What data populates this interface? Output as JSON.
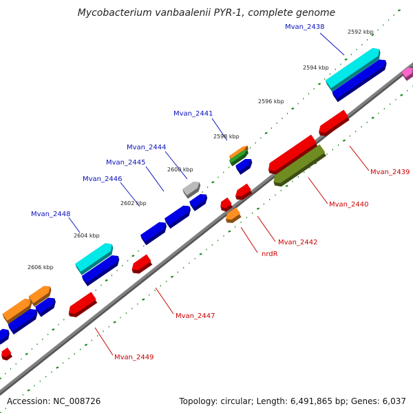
{
  "title": "Mycobacterium vanbaalenii PYR-1, complete genome",
  "footer": {
    "accession": "Accession: NC_008726",
    "summary": "Topology: circular; Length: 6,491,865 bp; Genes: 6,037"
  },
  "colors": {
    "blue": "#0000e6",
    "cyan": "#00e8e8",
    "red": "#ee0000",
    "orange": "#ff9020",
    "olive": "#6f8c22",
    "green": "#2ca02c",
    "gray": "#bbbbbb",
    "pink": "#ff66cc",
    "backbone": "#808080",
    "tick": "#1a8a1a",
    "label_blue": "#0a10b8",
    "label_red": "#c80000"
  },
  "kbp_ticks": [
    "2592 kbp",
    "2594 kbp",
    "2596 kbp",
    "2598 kbp",
    "2600 kbp",
    "2602 kbp",
    "2604 kbp",
    "2606 kbp"
  ],
  "genes_forward": [
    {
      "label": "Mvan_2438",
      "color": "cyan"
    },
    {
      "label": "Mvan_2441",
      "color": "orange"
    },
    {
      "label": "Mvan_2444",
      "color": "gray"
    },
    {
      "label": "Mvan_2445",
      "color": "blue"
    },
    {
      "label": "Mvan_2446",
      "color": "blue"
    },
    {
      "label": "Mvan_2448",
      "color": "cyan"
    }
  ],
  "genes_reverse": [
    {
      "label": "Mvan_2439",
      "color": "red"
    },
    {
      "label": "Mvan_2440",
      "color": "olive"
    },
    {
      "label": "Mvan_2442",
      "color": "red"
    },
    {
      "label": "nrdR",
      "color": "orange"
    },
    {
      "label": "Mvan_2447",
      "color": "red"
    },
    {
      "label": "Mvan_2449",
      "color": "red"
    }
  ]
}
